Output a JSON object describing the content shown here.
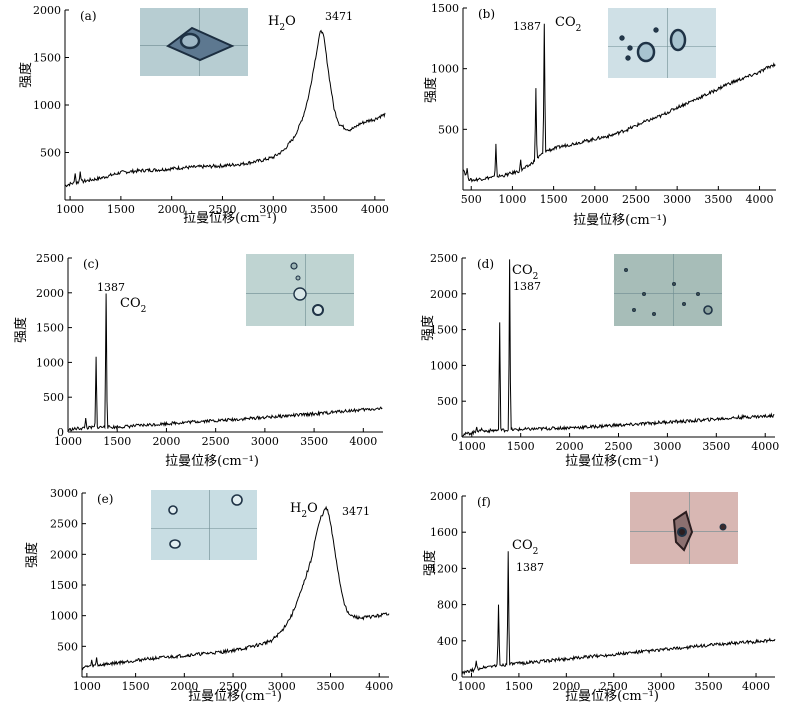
{
  "figure": {
    "xlabel": "拉曼位移(cm⁻¹)",
    "ylabel": "强度"
  },
  "chart_data": [
    {
      "id": "a",
      "type": "line",
      "panel_label": "(a)",
      "xlabel": "拉曼位移(cm⁻¹)",
      "ylabel": "强度",
      "xlim": [
        950,
        4100
      ],
      "ylim": [
        0,
        2000
      ],
      "xticks": [
        1000,
        1500,
        2000,
        2500,
        3000,
        3500,
        4000
      ],
      "yticks": [
        500,
        1000,
        1500,
        2000
      ],
      "annotations": [
        {
          "species": "H2O",
          "text": "3471"
        }
      ],
      "x": [
        950,
        1000,
        1050,
        1100,
        1150,
        1200,
        1300,
        1400,
        1500,
        1600,
        1700,
        1800,
        1900,
        2000,
        2100,
        2200,
        2300,
        2400,
        2500,
        2600,
        2700,
        2800,
        2900,
        3000,
        3100,
        3200,
        3250,
        3300,
        3350,
        3400,
        3450,
        3471,
        3500,
        3550,
        3600,
        3650,
        3700,
        3750,
        3800,
        3850,
        3900,
        3950,
        4000,
        4050,
        4100
      ],
      "y": [
        150,
        170,
        180,
        190,
        200,
        210,
        230,
        260,
        290,
        300,
        310,
        315,
        320,
        330,
        340,
        345,
        350,
        355,
        360,
        370,
        380,
        400,
        420,
        450,
        520,
        650,
        760,
        900,
        1100,
        1400,
        1700,
        1800,
        1700,
        1300,
        950,
        800,
        760,
        740,
        760,
        800,
        820,
        840,
        850,
        880,
        900
      ],
      "peaks": [
        [
          1050,
          280
        ],
        [
          1100,
          300
        ],
        [
          1390,
          260
        ]
      ]
    },
    {
      "id": "b",
      "type": "line",
      "panel_label": "(b)",
      "xlabel": "拉曼位移(cm⁻¹)",
      "ylabel": "强度",
      "xlim": [
        400,
        4200
      ],
      "ylim": [
        0,
        1500
      ],
      "xticks": [
        500,
        1000,
        1500,
        2000,
        2500,
        3000,
        3500,
        4000
      ],
      "yticks": [
        500,
        1000,
        1500
      ],
      "annotations": [
        {
          "species": "CO2",
          "text": "1387"
        }
      ],
      "x": [
        400,
        450,
        500,
        600,
        700,
        800,
        900,
        1000,
        1100,
        1200,
        1300,
        1400,
        1500,
        1600,
        1800,
        2000,
        2200,
        2400,
        2600,
        2800,
        3000,
        3200,
        3400,
        3600,
        3800,
        4000,
        4100,
        4200
      ],
      "y": [
        180,
        100,
        80,
        90,
        100,
        110,
        120,
        140,
        160,
        200,
        260,
        320,
        340,
        360,
        390,
        420,
        450,
        500,
        560,
        610,
        680,
        740,
        800,
        870,
        920,
        970,
        1010,
        1040
      ],
      "peaks": [
        [
          450,
          180
        ],
        [
          800,
          380
        ],
        [
          1100,
          250
        ],
        [
          1285,
          840
        ],
        [
          1387,
          1370
        ]
      ]
    },
    {
      "id": "c",
      "type": "line",
      "panel_label": "(c)",
      "xlabel": "拉曼位移(cm⁻¹)",
      "ylabel": "强度",
      "xlim": [
        1000,
        4200
      ],
      "ylim": [
        0,
        2500
      ],
      "xticks": [
        1000,
        1500,
        2000,
        2500,
        3000,
        3500,
        4000
      ],
      "yticks": [
        0,
        500,
        1000,
        1500,
        2000,
        2500
      ],
      "annotations": [
        {
          "species": "CO2",
          "text": "1387"
        }
      ],
      "x": [
        1000,
        1100,
        1200,
        1300,
        1500,
        1600,
        1800,
        2000,
        2200,
        2400,
        2600,
        2800,
        3000,
        3200,
        3400,
        3600,
        3800,
        4000,
        4200
      ],
      "y": [
        30,
        50,
        60,
        70,
        70,
        80,
        100,
        120,
        140,
        160,
        170,
        190,
        210,
        230,
        250,
        270,
        300,
        320,
        340
      ],
      "peaks": [
        [
          1180,
          200
        ],
        [
          1285,
          1080
        ],
        [
          1387,
          1990
        ]
      ]
    },
    {
      "id": "d",
      "type": "line",
      "panel_label": "(d)",
      "xlabel": "拉曼位移(cm⁻¹)",
      "ylabel": "强度",
      "xlim": [
        900,
        4100
      ],
      "ylim": [
        0,
        2500
      ],
      "xticks": [
        1000,
        1500,
        2000,
        2500,
        3000,
        3500,
        4000
      ],
      "yticks": [
        0,
        500,
        1000,
        1500,
        2000,
        2500
      ],
      "annotations": [
        {
          "species": "CO2",
          "text": "1387"
        }
      ],
      "x": [
        900,
        1000,
        1100,
        1200,
        1400,
        1600,
        1800,
        2000,
        2200,
        2400,
        2600,
        2800,
        3000,
        3200,
        3400,
        3600,
        3800,
        4000,
        4100
      ],
      "y": [
        30,
        60,
        80,
        90,
        100,
        110,
        120,
        130,
        140,
        160,
        170,
        190,
        210,
        220,
        240,
        260,
        280,
        290,
        300
      ],
      "peaks": [
        [
          1050,
          140
        ],
        [
          1100,
          120
        ],
        [
          1285,
          1600
        ],
        [
          1387,
          2480
        ]
      ]
    },
    {
      "id": "e",
      "type": "line",
      "panel_label": "(e)",
      "xlabel": "拉曼位移(cm⁻¹)",
      "ylabel": "强度",
      "xlim": [
        950,
        4100
      ],
      "ylim": [
        0,
        3000
      ],
      "xticks": [
        1000,
        1500,
        2000,
        2500,
        3000,
        3500,
        4000
      ],
      "yticks": [
        500,
        1000,
        1500,
        2000,
        2500,
        3000
      ],
      "annotations": [
        {
          "species": "H2O",
          "text": "3471"
        }
      ],
      "x": [
        950,
        1000,
        1100,
        1200,
        1400,
        1600,
        1800,
        2000,
        2200,
        2400,
        2600,
        2800,
        2900,
        3000,
        3100,
        3200,
        3300,
        3350,
        3400,
        3450,
        3471,
        3500,
        3550,
        3600,
        3650,
        3700,
        3750,
        3800,
        3900,
        4000,
        4100
      ],
      "y": [
        150,
        170,
        190,
        210,
        250,
        290,
        320,
        350,
        380,
        410,
        460,
        540,
        600,
        750,
        1000,
        1400,
        1900,
        2300,
        2600,
        2750,
        2720,
        2500,
        2000,
        1500,
        1150,
        1000,
        980,
        960,
        980,
        1000,
        1040
      ],
      "peaks": [
        [
          1050,
          280
        ],
        [
          1100,
          320
        ],
        [
          1600,
          280
        ]
      ]
    },
    {
      "id": "f",
      "type": "line",
      "panel_label": "(f)",
      "xlabel": "拉曼位移(cm⁻¹)",
      "ylabel": "强度",
      "xlim": [
        900,
        4200
      ],
      "ylim": [
        0,
        2000
      ],
      "xticks": [
        1000,
        1500,
        2000,
        2500,
        3000,
        3500,
        4000
      ],
      "yticks": [
        0,
        400,
        800,
        1200,
        1600,
        2000
      ],
      "annotations": [
        {
          "species": "CO2",
          "text": "1387"
        }
      ],
      "x": [
        900,
        1000,
        1100,
        1200,
        1400,
        1600,
        1800,
        2000,
        2200,
        2400,
        2600,
        2800,
        3000,
        3200,
        3400,
        3600,
        3800,
        4000,
        4200
      ],
      "y": [
        40,
        70,
        100,
        120,
        140,
        160,
        180,
        200,
        220,
        240,
        260,
        280,
        300,
        320,
        340,
        360,
        380,
        390,
        410
      ],
      "peaks": [
        [
          1050,
          180
        ],
        [
          1285,
          800
        ],
        [
          1387,
          1390
        ]
      ]
    }
  ]
}
